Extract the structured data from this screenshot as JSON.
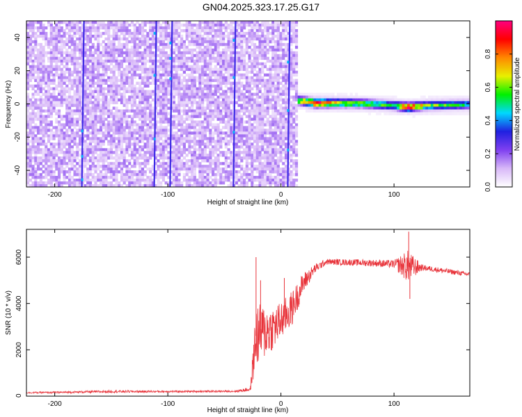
{
  "title": "GN04.2025.323.17.25.G17",
  "chart_data": [
    {
      "type": "heatmap",
      "xlabel": "Height of straight line (km)",
      "ylabel": "Frequency (Hz)",
      "xlim": [
        -225,
        167
      ],
      "ylim": [
        -50,
        50
      ],
      "x_ticks": [
        -200,
        -100,
        0,
        100
      ],
      "x_tick_labels": [
        "-200",
        "-100",
        "0",
        "100"
      ],
      "y_ticks": [
        -40,
        -20,
        0,
        20,
        40
      ],
      "y_tick_labels": [
        "-40",
        "-20",
        "0",
        "20",
        "40"
      ],
      "colorbar": {
        "label": "Normalized spectral amplitude",
        "range": [
          0,
          1
        ],
        "ticks": [
          0,
          0.2,
          0.4,
          0.6,
          0.8
        ],
        "tick_labels": [
          "0.0",
          "0.2",
          "0.4",
          "0.6",
          "0.8"
        ],
        "colormap": [
          "#ffffff",
          "#d8b8f8",
          "#8040f0",
          "#2020e0",
          "#00d8ff",
          "#00f000",
          "#e8f000",
          "#ff8800",
          "#ff0000",
          "#ff0080"
        ]
      },
      "noise_region_x": [
        -225,
        15
      ],
      "noise_level": 0.1,
      "vertical_streaks_x": [
        -176,
        -112,
        -98,
        -42,
        6
      ],
      "tone_track": [
        {
          "x": 15,
          "freq": 2,
          "amp": 0.6
        },
        {
          "x": 30,
          "freq": 0.5,
          "amp": 0.95
        },
        {
          "x": 50,
          "freq": 0.5,
          "amp": 0.7
        },
        {
          "x": 70,
          "freq": 0.3,
          "amp": 0.6
        },
        {
          "x": 100,
          "freq": -1,
          "amp": 0.55
        },
        {
          "x": 112,
          "freq": -2,
          "amp": 0.95
        },
        {
          "x": 130,
          "freq": -1,
          "amp": 0.6
        },
        {
          "x": 167,
          "freq": -0.5,
          "amp": 0.5
        }
      ]
    },
    {
      "type": "line",
      "xlabel": "Height of straight line (km)",
      "ylabel": "SNR (10 * v/v)",
      "xlim": [
        -225,
        167
      ],
      "ylim": [
        0,
        7200
      ],
      "x_ticks": [
        -200,
        -100,
        0,
        100
      ],
      "x_tick_labels": [
        "-200",
        "-100",
        "0",
        "100"
      ],
      "y_ticks": [
        0,
        2000,
        4000,
        6000
      ],
      "y_tick_labels": [
        "0",
        "2000",
        "4000",
        "6000"
      ],
      "color": "#e8333a",
      "envelope": [
        {
          "x": -225,
          "y": 150,
          "spread": 60
        },
        {
          "x": -200,
          "y": 160,
          "spread": 80
        },
        {
          "x": -150,
          "y": 200,
          "spread": 110
        },
        {
          "x": -100,
          "y": 200,
          "spread": 80
        },
        {
          "x": -40,
          "y": 210,
          "spread": 80
        },
        {
          "x": -27,
          "y": 300,
          "spread": 200
        },
        {
          "x": -22,
          "y": 2600,
          "spread": 2800
        },
        {
          "x": -5,
          "y": 3000,
          "spread": 1800
        },
        {
          "x": 10,
          "y": 3800,
          "spread": 1500
        },
        {
          "x": 20,
          "y": 4900,
          "spread": 900
        },
        {
          "x": 30,
          "y": 5500,
          "spread": 400
        },
        {
          "x": 40,
          "y": 5800,
          "spread": 250
        },
        {
          "x": 80,
          "y": 5750,
          "spread": 300
        },
        {
          "x": 100,
          "y": 5700,
          "spread": 350
        },
        {
          "x": 112,
          "y": 5600,
          "spread": 1400
        },
        {
          "x": 125,
          "y": 5550,
          "spread": 250
        },
        {
          "x": 167,
          "y": 5250,
          "spread": 200
        }
      ],
      "spikes": [
        {
          "x": -22,
          "y": 6000
        },
        {
          "x": -18,
          "y": 5000
        },
        {
          "x": 3,
          "y": 5100
        },
        {
          "x": 113,
          "y": 7100
        },
        {
          "x": 114,
          "y": 4200
        }
      ]
    }
  ]
}
